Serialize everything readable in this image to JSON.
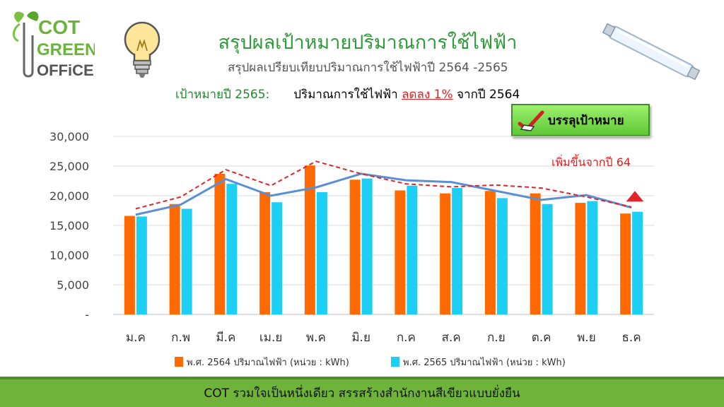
{
  "logo": {
    "line1": "COT",
    "line2": "GREEN",
    "line3": "OFFiCE"
  },
  "title": "สรุปผลเป้าหมายปริมาณการใช้ไฟฟ้า",
  "subtitle": "สรุปผลเปรียบเทียบปริมาณการใช้ไฟฟ้าปี 2564 -2565",
  "target": {
    "label": "เป้าหมายปี 2565:",
    "text_before": "ปริมาณการใช้ไฟฟ้า ",
    "text_highlight": "ลดลง 1%",
    "text_after": " จากปี 2564"
  },
  "badge": {
    "label": "บรรลุเป้าหมาย"
  },
  "footer": {
    "text": "COT รวมใจเป็นหนึ่งเดียว สรรสร้างสำนักงานสีเขียวแบบยั่งยืน"
  },
  "colors": {
    "series_2564": "#ff6a00",
    "series_2565": "#1ecff5",
    "trend_2564": "#e0262a",
    "trend_2565": "#5b8fd4",
    "footer": "#6fb33a",
    "title": "#2e9a3a"
  },
  "chart_data": {
    "type": "bar",
    "categories": [
      "ม.ค",
      "ก.พ",
      "มี.ค",
      "เม.ย",
      "พ.ค",
      "มิ.ย",
      "ก.ค",
      "ส.ค",
      "ก.ย",
      "ต.ค",
      "พ.ย",
      "ธ.ค"
    ],
    "series": [
      {
        "name": "พ.ศ. 2564 ปริมาณไฟฟ้า (หน่วย : kWh)",
        "values": [
          16600,
          18600,
          23700,
          20600,
          25100,
          22700,
          20900,
          20400,
          20800,
          20400,
          18800,
          17000
        ]
      },
      {
        "name": "พ.ศ. 2565 ปริมาณไฟฟ้า (หน่วย : kWh)",
        "values": [
          16500,
          17800,
          22000,
          18900,
          20600,
          22900,
          21700,
          21300,
          19600,
          18600,
          19100,
          17300
        ]
      }
    ],
    "trend_2564": [
      17800,
      19800,
      24400,
      21700,
      25800,
      23700,
      22000,
      21500,
      21800,
      21300,
      19800,
      18100
    ],
    "trend_2565": [
      16800,
      18500,
      22800,
      20000,
      21400,
      23700,
      22600,
      22300,
      20800,
      19300,
      20100,
      18000
    ],
    "yticks": [
      "-",
      "5,000",
      "10,000",
      "15,000",
      "20,000",
      "25,000",
      "30,000"
    ],
    "ylim": [
      0,
      30000
    ],
    "annotation": "เพิ่มขึ้นจากปี 64",
    "grid": true,
    "legend": "bottom"
  }
}
